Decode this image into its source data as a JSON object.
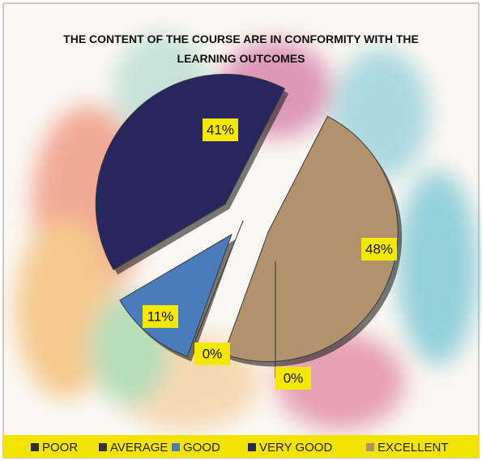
{
  "chart_data": {
    "type": "pie",
    "title": "THE CONTENT OF THE COURSE ARE IN CONFORMITY WITH THE LEARNING OUTCOMES",
    "categories": [
      "POOR",
      "AVERAGE",
      "GOOD",
      "VERY GOOD",
      "EXCELLENT"
    ],
    "values": [
      0,
      0,
      11,
      41,
      48
    ],
    "value_labels": [
      "0%",
      "0%",
      "11%",
      "41%",
      "48%"
    ],
    "colors": [
      "#2b2b2b",
      "#333333",
      "#4a7cbc",
      "#28265e",
      "#b2926c"
    ],
    "legend": "bottom"
  }
}
